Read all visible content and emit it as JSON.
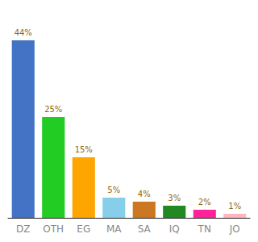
{
  "chart_data": {
    "type": "bar",
    "categories": [
      "DZ",
      "OTH",
      "EG",
      "MA",
      "SA",
      "IQ",
      "TN",
      "JO"
    ],
    "values": [
      44,
      25,
      15,
      5,
      4,
      3,
      2,
      1
    ],
    "value_labels": [
      "44%",
      "25%",
      "15%",
      "5%",
      "4%",
      "3%",
      "2%",
      "1%"
    ],
    "data_labels": true,
    "colors": [
      "#4472C4",
      "#22CC22",
      "#FFA500",
      "#87CEEB",
      "#CC7722",
      "#228822",
      "#FF2299",
      "#FFB6C1"
    ],
    "ylim": [
      0,
      50
    ],
    "tick_labels": "x",
    "grid": false
  }
}
